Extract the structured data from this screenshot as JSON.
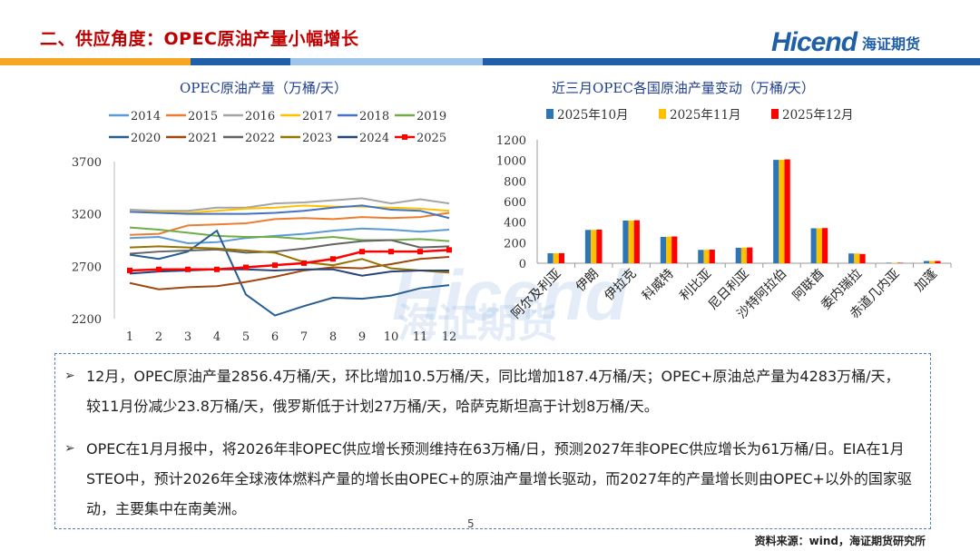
{
  "header": {
    "title": "二、供应角度：OPEC原油产量小幅增长",
    "logo_en": "Hicend",
    "logo_cn": "海证期货",
    "colors": {
      "title": "#c00000",
      "bar_orange": "#f5a623",
      "bar_blue": "#1f5fa8",
      "bar_light": "#9fc5e8"
    }
  },
  "watermark": {
    "en": "Hicend",
    "cn": "海证期货"
  },
  "left_chart": {
    "chart_data": {
      "type": "line",
      "title": "OPEC原油产量（万桶/天）",
      "categories": [
        "1",
        "2",
        "3",
        "4",
        "5",
        "6",
        "7",
        "8",
        "9",
        "10",
        "11",
        "12"
      ],
      "ylim": [
        2200,
        3700
      ],
      "yticks": [
        "3700",
        "3200",
        "2700",
        "2200"
      ],
      "series": [
        {
          "name": "2014",
          "color": "#5b9bd5",
          "values": [
            2970,
            2980,
            2920,
            2930,
            2970,
            2990,
            3010,
            3040,
            3060,
            3050,
            3030,
            3050
          ]
        },
        {
          "name": "2015",
          "color": "#ed7d31",
          "values": [
            3000,
            3010,
            3090,
            3100,
            3110,
            3150,
            3160,
            3150,
            3170,
            3160,
            3170,
            3210
          ]
        },
        {
          "name": "2016",
          "color": "#a5a5a5",
          "values": [
            3240,
            3230,
            3230,
            3260,
            3260,
            3300,
            3310,
            3330,
            3350,
            3300,
            3340,
            3300
          ]
        },
        {
          "name": "2017",
          "color": "#ffc000",
          "values": [
            3220,
            3220,
            3210,
            3230,
            3250,
            3260,
            3280,
            3270,
            3270,
            3260,
            3250,
            3230
          ]
        },
        {
          "name": "2018",
          "color": "#4472c4",
          "values": [
            3220,
            3210,
            3200,
            3200,
            3200,
            3210,
            3230,
            3260,
            3280,
            3240,
            3230,
            3160
          ]
        },
        {
          "name": "2019",
          "color": "#70ad47",
          "values": [
            3070,
            3050,
            3020,
            2990,
            2980,
            2980,
            2960,
            2980,
            2950,
            2950,
            2960,
            2940
          ]
        },
        {
          "name": "2020",
          "color": "#255e91",
          "values": [
            2810,
            2770,
            2840,
            3040,
            2430,
            2230,
            2320,
            2400,
            2390,
            2420,
            2490,
            2520
          ]
        },
        {
          "name": "2021",
          "color": "#9e480e",
          "values": [
            2540,
            2480,
            2500,
            2510,
            2550,
            2600,
            2660,
            2690,
            2680,
            2720,
            2770,
            2790
          ]
        },
        {
          "name": "2022",
          "color": "#636363",
          "values": [
            2820,
            2840,
            2850,
            2860,
            2830,
            2840,
            2870,
            2910,
            2940,
            2950,
            2880,
            2890
          ]
        },
        {
          "name": "2023",
          "color": "#997300",
          "values": [
            2880,
            2890,
            2880,
            2870,
            2850,
            2830,
            2740,
            2710,
            2770,
            2680,
            2660,
            2640
          ]
        },
        {
          "name": "2024",
          "color": "#264478",
          "values": [
            2630,
            2650,
            2660,
            2670,
            2670,
            2660,
            2670,
            2670,
            2610,
            2650,
            2660,
            2660
          ]
        },
        {
          "name": "2025",
          "color": "#ff0000",
          "values": [
            2660,
            2670,
            2670,
            2670,
            2690,
            2710,
            2730,
            2770,
            2840,
            2840,
            2840,
            2856
          ]
        }
      ]
    }
  },
  "right_chart": {
    "chart_data": {
      "type": "bar",
      "title": "近三月OPEC各国原油产量变动（万桶/天）",
      "categories": [
        "阿尔及利亚",
        "伊朗",
        "伊拉克",
        "科威特",
        "利比亚",
        "尼日利亚",
        "沙特阿拉伯",
        "阿联酋",
        "委内瑞拉",
        "赤道几内亚",
        "加蓬"
      ],
      "ylim": [
        0,
        1200
      ],
      "yticks": [
        "1200",
        "1000",
        "800",
        "600",
        "400",
        "200",
        "0"
      ],
      "series": [
        {
          "name": "2025年10月",
          "color": "#2e75b6",
          "values": [
            97,
            324,
            415,
            256,
            130,
            150,
            1005,
            340,
            95,
            5,
            22
          ]
        },
        {
          "name": "2025年11月",
          "color": "#ffc000",
          "values": [
            97,
            325,
            415,
            258,
            131,
            152,
            1006,
            340,
            95,
            5,
            22
          ]
        },
        {
          "name": "2025年12月",
          "color": "#ff0000",
          "values": [
            98,
            327,
            418,
            260,
            132,
            153,
            1010,
            342,
            90,
            5,
            22
          ]
        }
      ]
    }
  },
  "commentary": {
    "para1": "12月，OPEC原油产量2856.4万桶/天，环比增加10.5万桶/天，同比增加187.4万桶/天；OPEC+原油总产量为4283万桶/天，较11月份减少23.8万桶/天，俄罗斯低于计划27万桶/天，哈萨克斯坦高于计划8万桶/天。",
    "para2": "OPEC在1月月报中，将2026年非OPEC供应增长预测维持在63万桶/日，预测2027年非OPEC供应增长为61万桶/日。EIA在1月STEO中，预计2026年全球液体燃料产量的增长由OPEC+的原油产量增长驱动，而2027年的产量增长则由OPEC+以外的国家驱动，主要集中在南美洲。"
  },
  "footer": {
    "source": "资料来源：wind，海证期货研究所",
    "page": "5"
  }
}
